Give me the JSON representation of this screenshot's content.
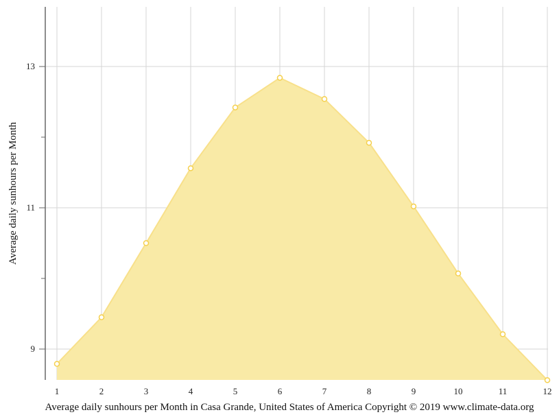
{
  "chart_data": {
    "type": "area",
    "title": "Average daily sunhours per Month in Casa Grande, United States of America Copyright © 2019 www.climate-data.org",
    "xlabel": "Average daily sunhours per Month in Casa Grande, United States of America Copyright © 2019 www.climate-data.org",
    "ylabel": "Average daily sunhours per Month",
    "categories": [
      "1",
      "2",
      "3",
      "4",
      "5",
      "6",
      "7",
      "8",
      "9",
      "10",
      "11",
      "12"
    ],
    "values": [
      8.79,
      9.45,
      10.5,
      11.56,
      12.42,
      12.84,
      12.54,
      11.92,
      11.02,
      10.07,
      9.21,
      8.56
    ],
    "y_ticks": [
      "9",
      "11",
      "13"
    ],
    "y_minor_ticks": [
      10,
      12
    ],
    "ylim": [
      8.56,
      13.84
    ],
    "grid": true,
    "legend": null,
    "colors": {
      "fill": "#f9eaa6",
      "line": "#f8e08a",
      "marker": "#f5d04d",
      "grid": "#d6d6d6",
      "axis": "#666666"
    }
  }
}
